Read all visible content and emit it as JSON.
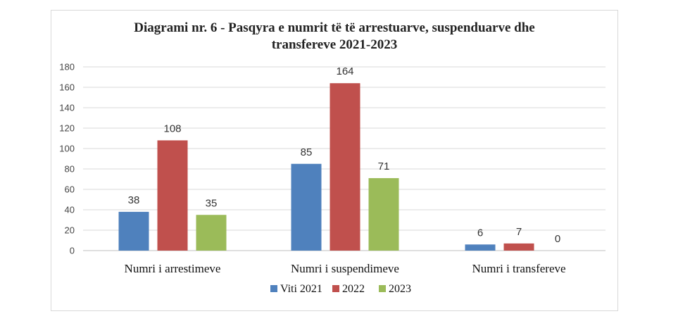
{
  "chart_data": {
    "type": "bar",
    "title_lines": [
      "Diagrami nr. 6 - Pasqyra e numrit të të arrestuarve, suspenduarve dhe",
      "transfereve 2021-2023"
    ],
    "categories": [
      "Numri i arrestimeve",
      "Numri i suspendimeve",
      "Numri i transfereve"
    ],
    "series": [
      {
        "name": "Viti 2021",
        "color": "#4f81bd",
        "values": [
          38,
          85,
          6
        ]
      },
      {
        "name": "2022",
        "color": "#c0504d",
        "values": [
          108,
          164,
          7
        ]
      },
      {
        "name": "2023",
        "color": "#9bbb59",
        "values": [
          35,
          71,
          0
        ]
      }
    ],
    "yticks": [
      0,
      20,
      40,
      60,
      80,
      100,
      120,
      140,
      160,
      180
    ],
    "ylim": [
      0,
      180
    ],
    "grid": true,
    "legend": "bottom"
  }
}
